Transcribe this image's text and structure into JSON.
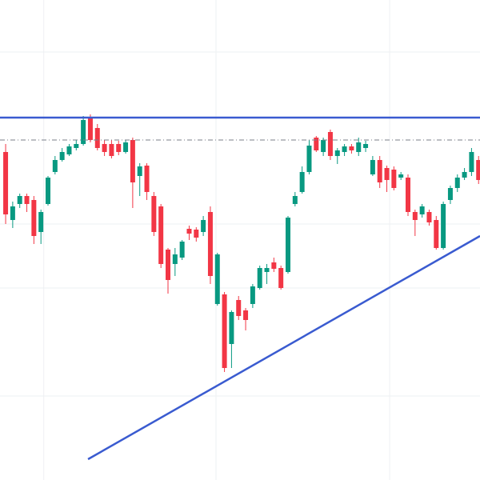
{
  "chart_data": {
    "type": "candlestick",
    "up_color": "#089981",
    "down_color": "#f23645",
    "xlim": [
      -0.8,
      67.2
    ],
    "ylim": [
      0,
      600
    ],
    "xticks": [
      5.4,
      29.8,
      54.4
    ],
    "yticks": [
      105,
      240,
      320,
      535
    ],
    "grid": true,
    "open": [
      410,
      325,
      345,
      355,
      350,
      310,
      345,
      385,
      400,
      407,
      415,
      420,
      452,
      440,
      420,
      420,
      420,
      410,
      425,
      380,
      393,
      355,
      342,
      288,
      270,
      278,
      314,
      313,
      310,
      335,
      220,
      232,
      170,
      225,
      212,
      220,
      240,
      260,
      272,
      265,
      260,
      345,
      360,
      385,
      428,
      410,
      435,
      405,
      410,
      417,
      410,
      415,
      382,
      400,
      390,
      388,
      378,
      378,
      335,
      332,
      335,
      325,
      290,
      350,
      365,
      378,
      385,
      400
    ],
    "high": [
      420,
      348,
      358,
      358,
      355,
      338,
      380,
      405,
      415,
      420,
      425,
      455,
      457,
      445,
      425,
      425,
      424,
      425,
      428,
      396,
      396,
      360,
      345,
      290,
      290,
      300,
      318,
      316,
      330,
      342,
      284,
      235,
      212,
      230,
      215,
      245,
      268,
      270,
      278,
      268,
      330,
      360,
      392,
      425,
      430,
      428,
      438,
      415,
      420,
      420,
      428,
      424,
      405,
      405,
      393,
      392,
      385,
      382,
      338,
      345,
      338,
      330,
      348,
      368,
      382,
      390,
      415,
      405
    ],
    "low": [
      320,
      315,
      340,
      335,
      295,
      295,
      343,
      382,
      398,
      405,
      412,
      418,
      422,
      412,
      405,
      402,
      406,
      408,
      340,
      355,
      350,
      305,
      265,
      233,
      255,
      275,
      300,
      298,
      305,
      245,
      218,
      135,
      140,
      200,
      187,
      215,
      238,
      245,
      260,
      238,
      258,
      342,
      358,
      382,
      410,
      405,
      400,
      395,
      405,
      408,
      405,
      410,
      380,
      365,
      360,
      362,
      375,
      330,
      305,
      328,
      318,
      288,
      288,
      345,
      360,
      375,
      380,
      370
    ],
    "close": [
      332,
      342,
      355,
      345,
      305,
      335,
      378,
      400,
      410,
      417,
      420,
      450,
      425,
      415,
      410,
      405,
      410,
      422,
      372,
      392,
      360,
      310,
      270,
      250,
      282,
      298,
      308,
      303,
      325,
      255,
      282,
      140,
      210,
      205,
      200,
      242,
      265,
      265,
      264,
      240,
      328,
      355,
      385,
      418,
      412,
      425,
      405,
      412,
      417,
      412,
      422,
      420,
      400,
      372,
      375,
      365,
      382,
      335,
      325,
      342,
      322,
      290,
      345,
      365,
      378,
      385,
      410,
      375
    ],
    "lines": [
      {
        "x": [
          -0.8,
          67.2
        ],
        "y": [
          453,
          453
        ],
        "color": "#3a5bd0",
        "style": "solid"
      },
      {
        "x": [
          -0.8,
          67.2
        ],
        "y": [
          425,
          425
        ],
        "color": "#7a7f8a",
        "style": "dashdot"
      },
      {
        "x": [
          11.67,
          67.2
        ],
        "y": [
          26,
          305
        ],
        "color": "#3a5bd0",
        "style": "solid"
      }
    ]
  }
}
